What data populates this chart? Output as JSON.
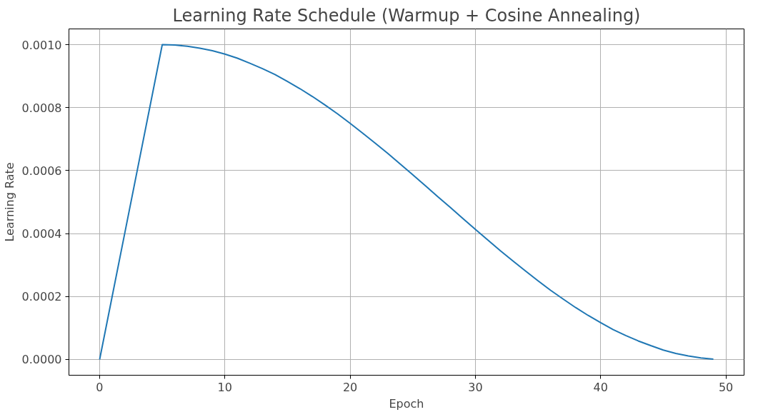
{
  "chart_data": {
    "type": "line",
    "title": "Learning Rate Schedule (Warmup + Cosine Annealing)",
    "xlabel": "Epoch",
    "ylabel": "Learning Rate",
    "x": [
      0,
      1,
      2,
      3,
      4,
      5,
      6,
      7,
      8,
      9,
      10,
      11,
      12,
      13,
      14,
      15,
      16,
      17,
      18,
      19,
      20,
      21,
      22,
      23,
      24,
      25,
      26,
      27,
      28,
      29,
      30,
      31,
      32,
      33,
      34,
      35,
      36,
      37,
      38,
      39,
      40,
      41,
      42,
      43,
      44,
      45,
      46,
      47,
      48,
      49
    ],
    "series": [
      {
        "color": "#1f77b4",
        "values": [
          0,
          0.0002,
          0.0004,
          0.0006,
          0.0008,
          0.001,
          0.000999,
          0.000995,
          0.000989,
          0.000981,
          0.00097,
          0.000957,
          0.000941,
          0.000924,
          0.000905,
          0.000883,
          0.00086,
          0.000835,
          0.000808,
          0.00078,
          0.00075,
          0.000719,
          0.000687,
          0.000655,
          0.000621,
          0.000587,
          0.000552,
          0.000517,
          0.000483,
          0.000448,
          0.000413,
          0.000379,
          0.000345,
          0.000313,
          0.000281,
          0.00025,
          0.00022,
          0.000192,
          0.000165,
          0.00014,
          0.000117,
          9.5e-05,
          7.6e-05,
          5.9e-05,
          4.4e-05,
          3e-05,
          1.9e-05,
          1.1e-05,
          5e-06,
          1e-06
        ]
      }
    ],
    "xlim": [
      -2.45,
      51.45
    ],
    "ylim": [
      -5e-05,
      0.00105
    ],
    "xticks": [
      0,
      10,
      20,
      30,
      40,
      50
    ],
    "yticks": [
      {
        "value": 0,
        "label": "0.0000"
      },
      {
        "value": 0.0002,
        "label": "0.0002"
      },
      {
        "value": 0.0004,
        "label": "0.0004"
      },
      {
        "value": 0.0006,
        "label": "0.0006"
      },
      {
        "value": 0.0008,
        "label": "0.0008"
      },
      {
        "value": 0.001,
        "label": "0.0010"
      }
    ],
    "grid": true,
    "marker": "none",
    "line_style": "solid"
  }
}
